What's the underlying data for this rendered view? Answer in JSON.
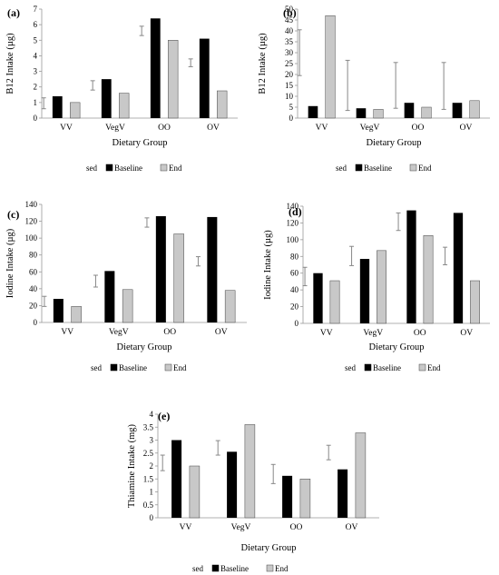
{
  "colors": {
    "baseline": "#000000",
    "end": "#c8c8c8",
    "end_stroke": "#444444",
    "axis": "#999999",
    "error_bar": "#888888"
  },
  "chart_data": [
    {
      "id": "a",
      "panel_label": "(a)",
      "type": "bar",
      "ylabel": "B12 Intake (µg)",
      "xlabel": "Dietary Group",
      "ylim": [
        0,
        7
      ],
      "yticks": [
        0,
        1,
        2,
        3,
        4,
        5,
        6,
        7
      ],
      "categories": [
        "VV",
        "VegV",
        "OO",
        "OV"
      ],
      "series": [
        {
          "name": "Baseline",
          "values": [
            1.4,
            2.5,
            6.4,
            5.1
          ]
        },
        {
          "name": "End",
          "values": [
            1.0,
            1.6,
            5.0,
            1.75
          ]
        }
      ],
      "error_bars": [
        [
          0.6,
          1.3
        ],
        [
          1.8,
          2.4
        ],
        [
          5.3,
          5.9
        ],
        [
          3.3,
          3.8
        ]
      ],
      "legend": {
        "prefix": "sed",
        "items": [
          "Baseline",
          "End"
        ],
        "placement": "bottom"
      }
    },
    {
      "id": "b",
      "panel_label": "(b)",
      "type": "bar",
      "ylabel": "B12 Intake (µg)",
      "xlabel": "Dietary Group",
      "ylim": [
        0,
        50
      ],
      "yticks": [
        0,
        5,
        10,
        15,
        20,
        25,
        30,
        35,
        40,
        45,
        50
      ],
      "categories": [
        "VV",
        "VegV",
        "OO",
        "OV"
      ],
      "series": [
        {
          "name": "Baseline",
          "values": [
            5.5,
            4.5,
            7.0,
            7.0
          ]
        },
        {
          "name": "End",
          "values": [
            47.0,
            4.0,
            5.0,
            8.0
          ]
        }
      ],
      "error_bars": [
        [
          19.5,
          40.5
        ],
        [
          3.5,
          26.5
        ],
        [
          4.5,
          25.5
        ],
        [
          4.0,
          25.5
        ]
      ],
      "legend": {
        "prefix": "sed",
        "items": [
          "Baseline",
          "End"
        ],
        "placement": "bottom"
      }
    },
    {
      "id": "c",
      "panel_label": "(c)",
      "type": "bar",
      "ylabel": "Iodine Intake (µg)",
      "xlabel": "Dietary Group",
      "ylim": [
        0,
        140
      ],
      "yticks": [
        0,
        20,
        40,
        60,
        80,
        100,
        120,
        140
      ],
      "categories": [
        "VV",
        "VegV",
        "OO",
        "OV"
      ],
      "series": [
        {
          "name": "Baseline",
          "values": [
            28,
            61,
            126,
            125
          ]
        },
        {
          "name": "End",
          "values": [
            19,
            39,
            105,
            38
          ]
        }
      ],
      "error_bars": [
        [
          19,
          31
        ],
        [
          42,
          56
        ],
        [
          113,
          124
        ],
        [
          67,
          78
        ]
      ],
      "legend": {
        "prefix": "sed",
        "items": [
          "Baseline",
          "End"
        ],
        "placement": "bottom"
      }
    },
    {
      "id": "d",
      "panel_label": "(d)",
      "type": "bar",
      "ylabel": "Iodine Intake (µg)",
      "xlabel": "Dietary Group",
      "ylim": [
        0,
        140
      ],
      "yticks": [
        0,
        20,
        40,
        60,
        80,
        100,
        120,
        140
      ],
      "categories": [
        "VV",
        "VegV",
        "OO",
        "OV"
      ],
      "series": [
        {
          "name": "Baseline",
          "values": [
            60,
            77,
            135,
            132
          ]
        },
        {
          "name": "End",
          "values": [
            51,
            87,
            105,
            51
          ]
        }
      ],
      "error_bars": [
        [
          45,
          67
        ],
        [
          69,
          92
        ],
        [
          111,
          132
        ],
        [
          70,
          91
        ]
      ],
      "legend": {
        "prefix": "sed",
        "items": [
          "Baseline",
          "End"
        ],
        "placement": "bottom"
      }
    },
    {
      "id": "e",
      "panel_label": "(e)",
      "type": "bar",
      "ylabel": "Thiamine Intake (mg)",
      "xlabel": "Dietary Group",
      "ylim": [
        0,
        4
      ],
      "yticks": [
        0,
        0.5,
        1,
        1.5,
        2,
        2.5,
        3,
        3.5,
        4
      ],
      "ytick_labels": [
        "0",
        "0.5",
        "1",
        "1.5",
        "2",
        "2.5",
        "3",
        "3.5",
        "4"
      ],
      "categories": [
        "VV",
        "VegV",
        "OO",
        "OV"
      ],
      "series": [
        {
          "name": "Baseline",
          "values": [
            3.0,
            2.55,
            1.62,
            1.87
          ]
        },
        {
          "name": "End",
          "values": [
            2.0,
            3.6,
            1.5,
            3.28
          ]
        }
      ],
      "error_bars": [
        [
          1.82,
          2.42
        ],
        [
          2.42,
          2.98
        ],
        [
          1.32,
          2.06
        ],
        [
          2.24,
          2.8
        ]
      ],
      "legend": {
        "prefix": "sed",
        "items": [
          "Baseline",
          "End"
        ],
        "placement": "bottom"
      }
    }
  ]
}
